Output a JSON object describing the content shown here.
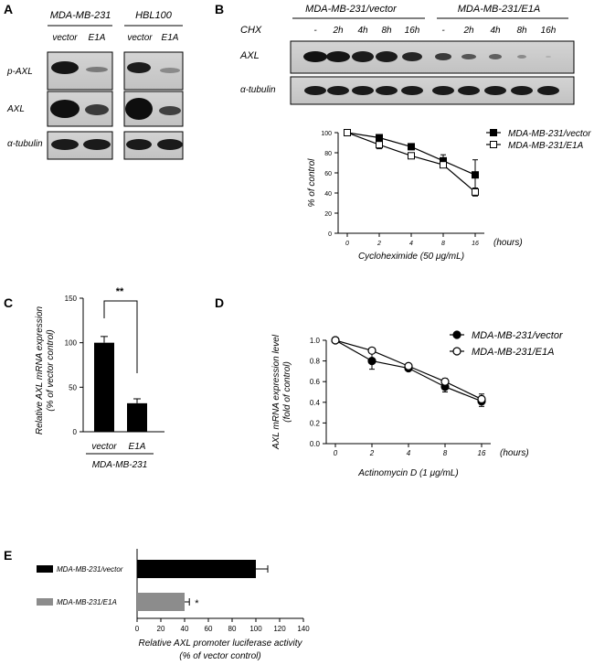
{
  "panels": {
    "A": {
      "letter": "A",
      "cell_lines": [
        "MDA-MB-231",
        "HBL100"
      ],
      "lanes": [
        [
          "vector",
          "E1A"
        ],
        [
          "vector",
          "E1A"
        ]
      ],
      "blot_labels": [
        "p-AXL",
        "AXL",
        "α-tubulin"
      ]
    },
    "B": {
      "letter": "B",
      "groups": [
        "MDA-MB-231/vector",
        "MDA-MB-231/E1A"
      ],
      "chx_label": "CHX",
      "lanes": [
        "-",
        "2h",
        "4h",
        "8h",
        "16h",
        "-",
        "2h",
        "4h",
        "8h",
        "16h"
      ],
      "blot_labels": [
        "AXL",
        "α-tubulin"
      ]
    },
    "C": {
      "letter": "C",
      "group_label": "MDA-MB-231"
    },
    "D": {
      "letter": "D"
    },
    "E": {
      "letter": "E"
    }
  },
  "chart_data": [
    {
      "id": "B",
      "type": "line",
      "x": [
        0,
        2,
        4,
        8,
        16
      ],
      "x_tick_labels": [
        "0",
        "2",
        "4",
        "8",
        "16"
      ],
      "x_unit_label": "(hours)",
      "xlabel": "Cycloheximide (50 μg/mL)",
      "ylabel": "% of control",
      "ylim": [
        0,
        100
      ],
      "y_ticks": [
        0,
        20,
        40,
        60,
        80,
        100
      ],
      "legend_position": "top-right",
      "series": [
        {
          "name": "MDA-MB-231/vector",
          "marker": "filled-square",
          "values": [
            100,
            95,
            86,
            72,
            58
          ],
          "errors": [
            0,
            3,
            2,
            6,
            15
          ]
        },
        {
          "name": "MDA-MB-231/E1A",
          "marker": "open-square",
          "values": [
            100,
            88,
            77,
            68,
            41
          ],
          "errors": [
            0,
            4,
            2,
            3,
            4
          ]
        }
      ]
    },
    {
      "id": "C",
      "type": "bar",
      "categories": [
        "vector",
        "E1A"
      ],
      "values": [
        100,
        32
      ],
      "errors": [
        7,
        5
      ],
      "ylabel_lines": [
        "Relative AXL mRNA expression",
        "(% of vector control)"
      ],
      "ylim": [
        0,
        150
      ],
      "y_ticks": [
        0,
        50,
        100,
        150
      ],
      "significance": "**",
      "color": "#000000"
    },
    {
      "id": "D",
      "type": "line",
      "x": [
        0,
        2,
        4,
        8,
        16
      ],
      "x_tick_labels": [
        "0",
        "2",
        "4",
        "8",
        "16"
      ],
      "x_unit_label": "(hours)",
      "xlabel": "Actinomycin D (1 μg/mL)",
      "ylabel_lines": [
        "AXL mRNA expression level",
        "(fold of control)"
      ],
      "ylim": [
        0,
        1.0
      ],
      "y_ticks": [
        0.0,
        0.2,
        0.4,
        0.6,
        0.8,
        1.0
      ],
      "y_tick_labels": [
        "0.0",
        "0.2",
        "0.4",
        "0.6",
        "0.8",
        "1.0"
      ],
      "legend_position": "top-right",
      "series": [
        {
          "name": "MDA-MB-231/vector",
          "marker": "filled-circle",
          "values": [
            1.0,
            0.8,
            0.73,
            0.55,
            0.41
          ],
          "errors": [
            0,
            0.08,
            0.02,
            0.05,
            0.05
          ]
        },
        {
          "name": "MDA-MB-231/E1A",
          "marker": "open-circle",
          "values": [
            1.0,
            0.9,
            0.75,
            0.6,
            0.43
          ],
          "errors": [
            0,
            0,
            0.02,
            0.03,
            0.05
          ]
        }
      ]
    },
    {
      "id": "E",
      "type": "bar",
      "orientation": "horizontal",
      "categories": [
        "MDA-MB-231/vector",
        "MDA-MB-231/E1A"
      ],
      "values": [
        100,
        40
      ],
      "errors": [
        10,
        4
      ],
      "colors": [
        "#000000",
        "#8c8c8c"
      ],
      "significance": [
        "",
        "*"
      ],
      "xlabel_lines": [
        "Relative AXL promoter luciferase activity",
        "(% of vector control)"
      ],
      "xlim": [
        0,
        140
      ],
      "x_ticks": [
        0,
        20,
        40,
        60,
        80,
        100,
        120,
        140
      ]
    }
  ]
}
